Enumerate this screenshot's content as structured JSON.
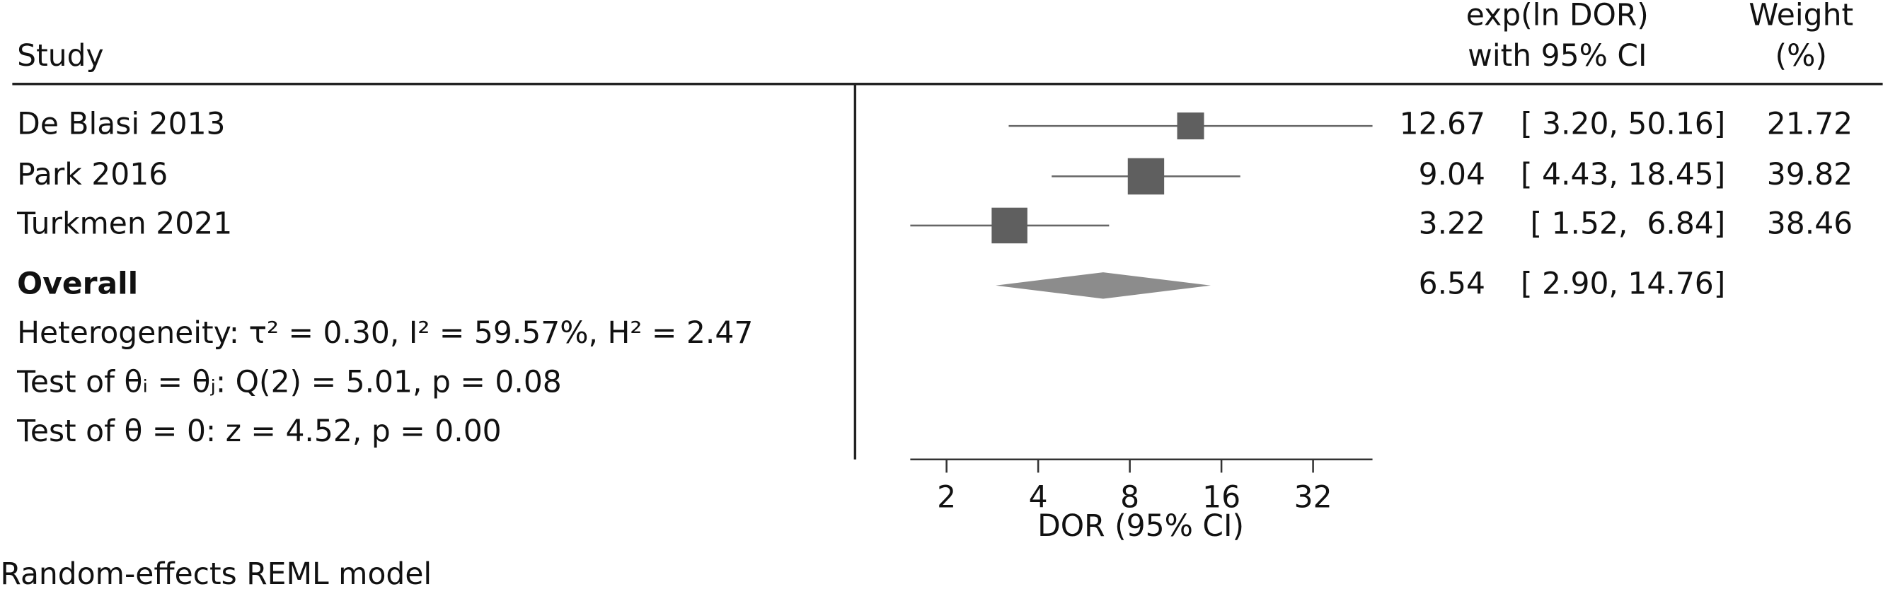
{
  "chart_data": {
    "type": "forest",
    "header": {
      "study": "Study",
      "effect": [
        "exp(ln DOR)",
        "with 95% CI"
      ],
      "weight": [
        "Weight",
        "(%)"
      ]
    },
    "categories": [
      "De Blasi 2013",
      "Park 2016",
      "Turkmen 2021"
    ],
    "values": [
      12.67,
      9.04,
      3.22
    ],
    "lower": [
      3.2,
      4.43,
      1.52
    ],
    "upper": [
      50.16,
      18.45,
      6.84
    ],
    "value_labels": [
      "12.67",
      "9.04",
      "3.22"
    ],
    "ci_labels": [
      "[ 3.20, 50.16]",
      "[ 4.43, 18.45]",
      "[ 1.52,  6.84]"
    ],
    "weights": [
      21.72,
      39.82,
      38.46
    ],
    "color": "#5f5f5f",
    "overall": {
      "label": "Overall",
      "value": 6.54,
      "lower": 2.9,
      "upper": 14.76,
      "value_label": "6.54",
      "ci_label": "[ 2.90, 14.76]",
      "color": "#8c8c8c"
    },
    "notes": [
      "Heterogeneity: τ² = 0.30, I² = 59.57%, H² = 2.47",
      "Test of θᵢ = θⱼ: Q(2) = 5.01, p = 0.08",
      "Test of θ = 0: z = 4.52, p = 0.00"
    ],
    "xscale": "log",
    "xlim": [
      1.52,
      50.16
    ],
    "xticks": [
      2,
      4,
      8,
      16,
      32
    ],
    "xlabel": "DOR (95% CI)",
    "footnote": "Random-effects REML model"
  }
}
